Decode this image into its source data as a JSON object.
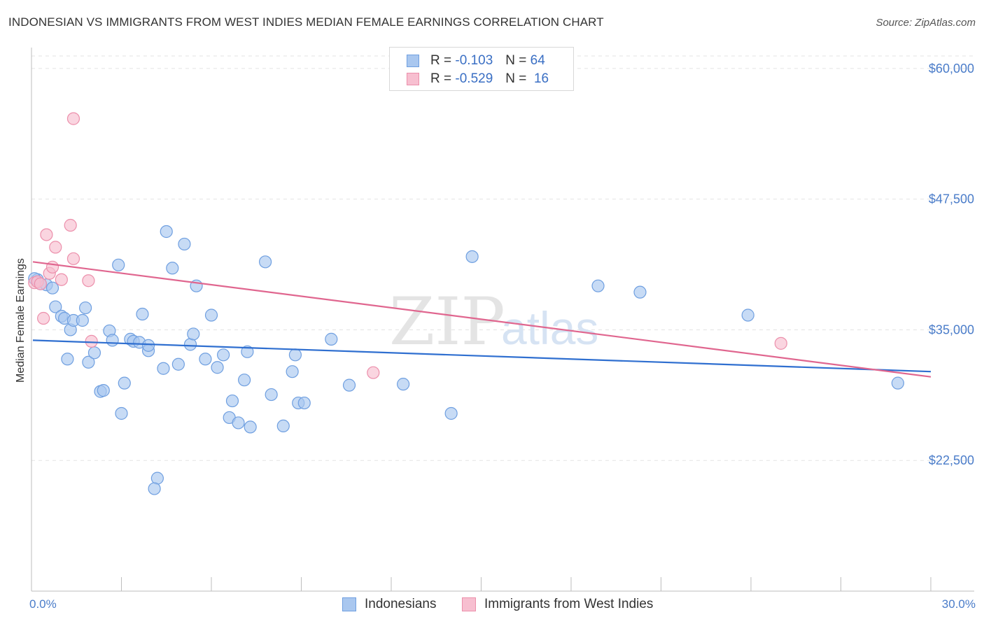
{
  "header": {
    "title": "INDONESIAN VS IMMIGRANTS FROM WEST INDIES MEDIAN FEMALE EARNINGS CORRELATION CHART",
    "source": "Source: ZipAtlas.com"
  },
  "legend": {
    "rows": [
      {
        "r_label": "R =",
        "r_value": "-0.103",
        "n_label": "N =",
        "n_value": "64",
        "color": "#a9c7ef",
        "border": "#6f9fe0"
      },
      {
        "r_label": "R =",
        "r_value": "-0.529",
        "n_label": "N =",
        "n_value": "16",
        "color": "#f7bfd0",
        "border": "#ec8fab"
      }
    ]
  },
  "bottom_legend": {
    "items": [
      {
        "label": "Indonesians",
        "color": "#a9c7ef",
        "border": "#6f9fe0"
      },
      {
        "label": "Immigrants from West Indies",
        "color": "#f7bfd0",
        "border": "#ec8fab"
      }
    ]
  },
  "watermark": {
    "zip": "ZIP",
    "atlas": "atlas"
  },
  "chart_data": {
    "type": "scatter",
    "title": "INDONESIAN VS IMMIGRANTS FROM WEST INDIES MEDIAN FEMALE EARNINGS CORRELATION CHART",
    "xlabel": "",
    "ylabel": "Median Female Earnings",
    "xlim": [
      0,
      30
    ],
    "ylim": [
      10000,
      62000
    ],
    "x_tick_labels": [
      "0.0%",
      "30.0%"
    ],
    "y_ticks": [
      22500,
      35000,
      47500,
      60000
    ],
    "y_tick_labels": [
      "$22,500",
      "$35,000",
      "$47,500",
      "$60,000"
    ],
    "grid": true,
    "series": [
      {
        "name": "Indonesians",
        "color": "#6f9fe0",
        "fill": "#a9c7ef",
        "trend": {
          "x": [
            0,
            30
          ],
          "y": [
            34000,
            31000
          ]
        },
        "points": [
          [
            0.2,
            39800
          ],
          [
            0.3,
            39400
          ],
          [
            0.5,
            39300
          ],
          [
            0.7,
            39000
          ],
          [
            0.8,
            37200
          ],
          [
            1.0,
            36300
          ],
          [
            1.1,
            36100
          ],
          [
            1.3,
            35000
          ],
          [
            1.2,
            32200
          ],
          [
            1.4,
            35900
          ],
          [
            1.7,
            35900
          ],
          [
            1.8,
            37100
          ],
          [
            1.9,
            31900
          ],
          [
            2.1,
            32800
          ],
          [
            2.3,
            29100
          ],
          [
            2.4,
            29200
          ],
          [
            2.6,
            34900
          ],
          [
            2.7,
            34000
          ],
          [
            2.9,
            41200
          ],
          [
            3.0,
            27000
          ],
          [
            3.1,
            29900
          ],
          [
            3.3,
            34100
          ],
          [
            3.4,
            33900
          ],
          [
            3.6,
            33800
          ],
          [
            3.7,
            36500
          ],
          [
            3.9,
            33000
          ],
          [
            3.9,
            33500
          ],
          [
            4.2,
            20800
          ],
          [
            4.1,
            19800
          ],
          [
            4.4,
            31300
          ],
          [
            4.5,
            44400
          ],
          [
            4.7,
            40900
          ],
          [
            4.9,
            31700
          ],
          [
            5.1,
            43200
          ],
          [
            5.3,
            33600
          ],
          [
            5.4,
            34600
          ],
          [
            5.5,
            39200
          ],
          [
            5.8,
            32200
          ],
          [
            6.0,
            36400
          ],
          [
            6.2,
            31400
          ],
          [
            6.4,
            32600
          ],
          [
            6.6,
            26600
          ],
          [
            6.7,
            28200
          ],
          [
            6.9,
            26100
          ],
          [
            7.1,
            30200
          ],
          [
            7.2,
            32900
          ],
          [
            7.3,
            25700
          ],
          [
            7.8,
            41500
          ],
          [
            8.0,
            28800
          ],
          [
            8.4,
            25800
          ],
          [
            8.7,
            31000
          ],
          [
            8.8,
            32600
          ],
          [
            8.9,
            28000
          ],
          [
            9.1,
            28000
          ],
          [
            10.0,
            34100
          ],
          [
            10.6,
            29700
          ],
          [
            12.4,
            29800
          ],
          [
            14.0,
            27000
          ],
          [
            14.7,
            42000
          ],
          [
            18.9,
            39200
          ],
          [
            20.3,
            38600
          ],
          [
            23.9,
            36400
          ],
          [
            28.9,
            29900
          ],
          [
            0.1,
            39900
          ]
        ]
      },
      {
        "name": "Immigrants from West Indies",
        "color": "#ec8fab",
        "fill": "#f7bfd0",
        "trend": {
          "x": [
            0,
            30
          ],
          "y": [
            41500,
            30500
          ]
        },
        "points": [
          [
            0.1,
            39500
          ],
          [
            0.2,
            39600
          ],
          [
            0.3,
            39400
          ],
          [
            0.4,
            36100
          ],
          [
            0.5,
            44100
          ],
          [
            0.6,
            40400
          ],
          [
            0.7,
            41000
          ],
          [
            0.8,
            42900
          ],
          [
            1.0,
            39800
          ],
          [
            1.3,
            45000
          ],
          [
            1.4,
            41800
          ],
          [
            1.4,
            55200
          ],
          [
            1.9,
            39700
          ],
          [
            2.0,
            33900
          ],
          [
            11.4,
            30900
          ],
          [
            25.0,
            33700
          ]
        ]
      }
    ]
  }
}
